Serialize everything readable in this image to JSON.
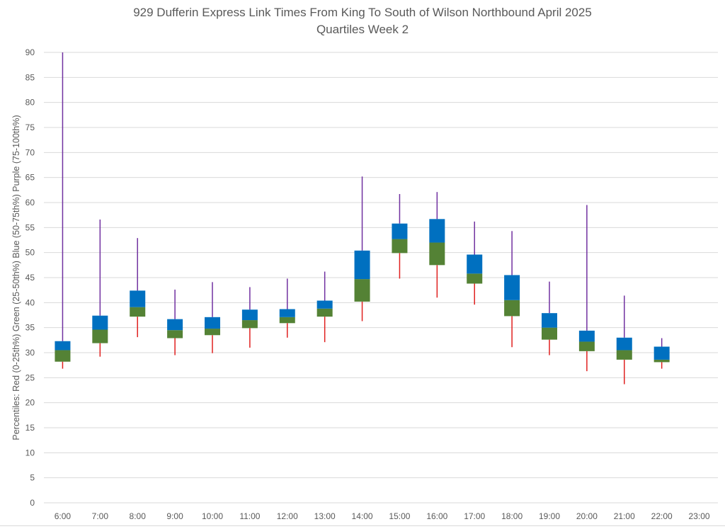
{
  "chart_data": {
    "type": "box",
    "title": "929 Dufferin Express Link Times From King To South of Wilson Northbound April 2025",
    "subtitle": "Quartiles Week 2",
    "xlabel": "",
    "ylabel": "Percentiles:  Red (0-25th%)  Green (25-50th%)  Blue (50-75th%)  Purple (75-100th%)",
    "ylim": [
      0,
      90
    ],
    "yticks": [
      0,
      5,
      10,
      15,
      20,
      25,
      30,
      35,
      40,
      45,
      50,
      55,
      60,
      65,
      70,
      75,
      80,
      85,
      90
    ],
    "grid": true,
    "legend": "none (encoded in y-axis label)",
    "colors": {
      "min_to_q1": "#e0201f",
      "q1_to_median": "#548235",
      "median_to_q3": "#0070c0",
      "q3_to_max": "#7030a0",
      "grid": "#d9d9d9",
      "text": "#595959"
    },
    "categories": [
      "6:00",
      "7:00",
      "8:00",
      "9:00",
      "10:00",
      "11:00",
      "12:00",
      "13:00",
      "14:00",
      "15:00",
      "16:00",
      "17:00",
      "18:00",
      "19:00",
      "20:00",
      "21:00",
      "22:00",
      "23:00"
    ],
    "series": [
      {
        "name": "min",
        "values": [
          26.8,
          29.2,
          33.1,
          29.5,
          29.9,
          31.0,
          33.0,
          32.1,
          36.3,
          44.8,
          41.0,
          39.6,
          31.1,
          29.5,
          26.3,
          23.7,
          26.8,
          null
        ]
      },
      {
        "name": "q1",
        "values": [
          28.2,
          31.9,
          37.2,
          32.9,
          33.5,
          34.9,
          35.9,
          37.2,
          40.2,
          49.9,
          47.5,
          43.8,
          37.3,
          32.6,
          30.3,
          28.6,
          28.1,
          null
        ]
      },
      {
        "name": "median",
        "values": [
          30.5,
          34.6,
          39.1,
          34.5,
          34.8,
          36.5,
          37.1,
          38.8,
          44.7,
          52.7,
          52.0,
          45.8,
          40.5,
          35.0,
          32.2,
          30.5,
          28.6,
          null
        ]
      },
      {
        "name": "q3",
        "values": [
          32.3,
          37.4,
          42.4,
          36.7,
          37.1,
          38.6,
          38.7,
          40.4,
          50.4,
          55.8,
          56.7,
          49.6,
          45.5,
          37.9,
          34.4,
          33.0,
          31.2,
          null
        ]
      },
      {
        "name": "max",
        "values": [
          90.0,
          56.6,
          52.9,
          42.6,
          44.1,
          43.1,
          44.8,
          46.2,
          65.2,
          61.7,
          62.1,
          56.2,
          54.3,
          44.2,
          59.5,
          41.4,
          32.9,
          null
        ]
      }
    ]
  }
}
